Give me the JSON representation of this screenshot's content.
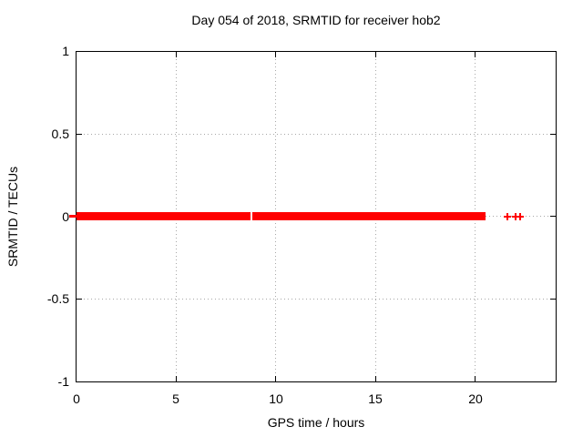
{
  "page": {
    "background": "#ffffff",
    "text_color": "#000000"
  },
  "chart_data": {
    "type": "scatter",
    "title": "Day 054 of 2018, SRMTID for receiver hob2",
    "xlabel": "GPS time / hours",
    "ylabel": "SRMTID / TECUs",
    "xlim": [
      0,
      24
    ],
    "ylim": [
      -1,
      1
    ],
    "x_ticks": [
      0,
      5,
      10,
      15,
      20
    ],
    "x_tick_labels": [
      "0",
      "5",
      "10",
      "15",
      "20"
    ],
    "y_ticks": [
      1,
      0.5,
      0,
      -0.5,
      -1
    ],
    "y_tick_labels": [
      "1",
      "0.5",
      "0",
      "-0.5",
      "-1"
    ],
    "grid": "dotted",
    "grid_color": "#a8a8a8",
    "border_color": "#000000",
    "legend": "none",
    "series": [
      {
        "name": "SRMTID",
        "marker": "plus",
        "color": "#ff0000",
        "y_value": 0,
        "band_halfheight_tecus": 0.025,
        "dense_segments_hours": [
          [
            0,
            8.7
          ],
          [
            8.8,
            20.5
          ]
        ],
        "isolated_point_hours": [
          21.6,
          22.0,
          22.2
        ],
        "overhangs_left_axis": true
      }
    ]
  }
}
